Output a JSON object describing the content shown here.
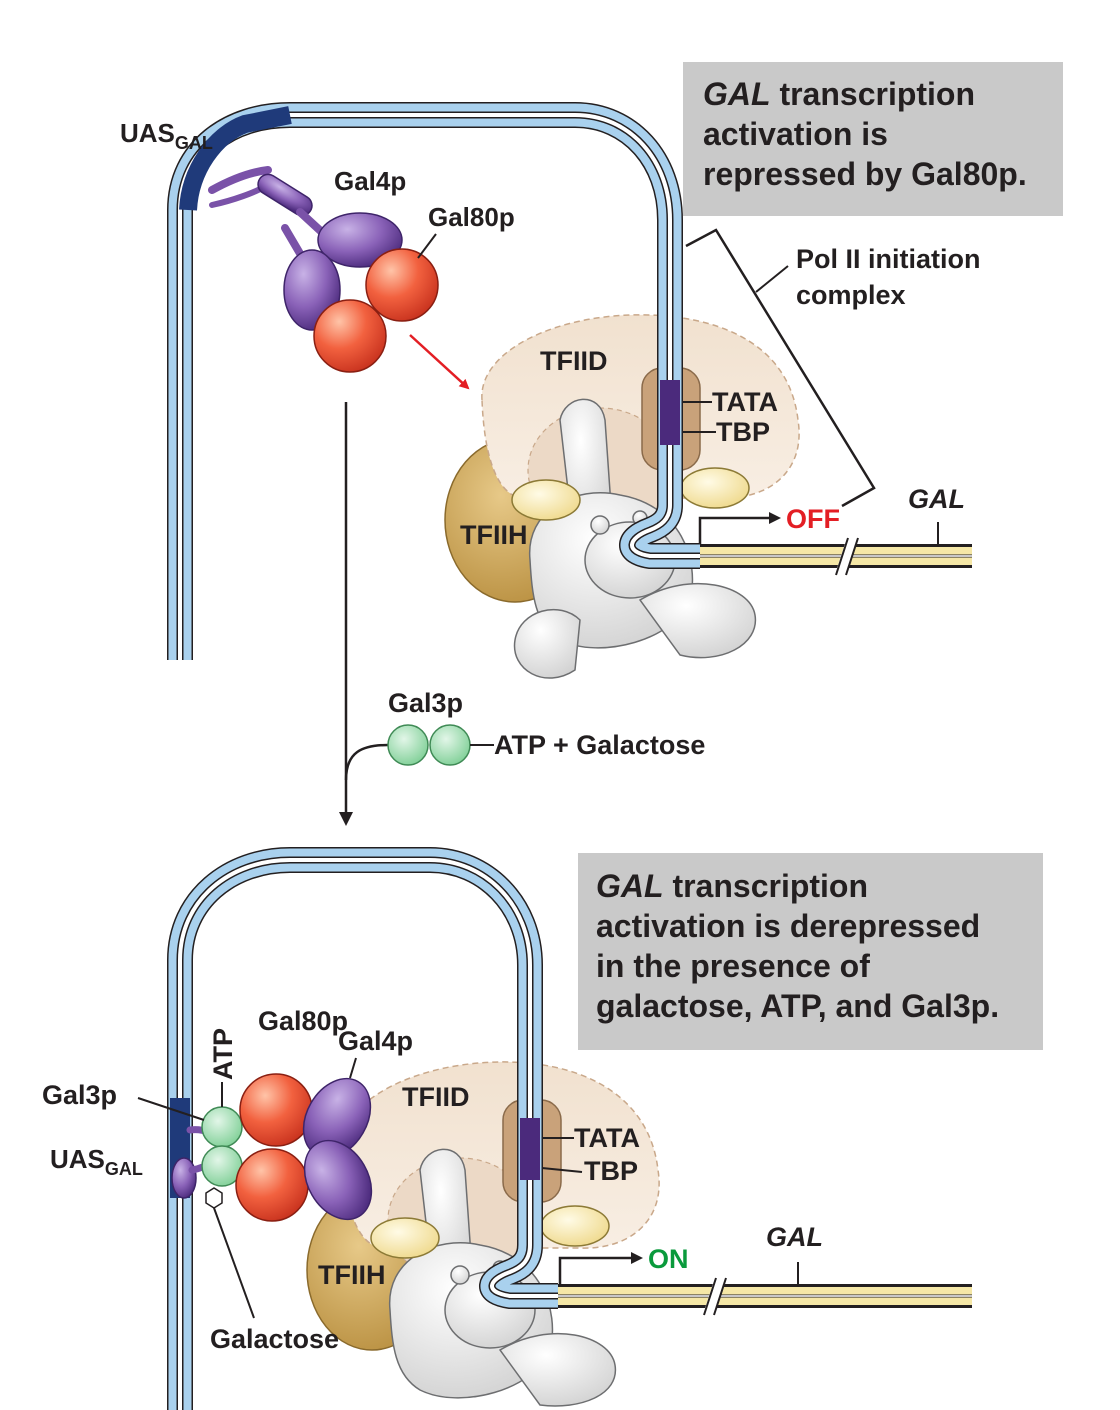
{
  "top_panel": {
    "note_gene": "GAL",
    "note_line1_rest": " transcription",
    "note_line2": "activation is",
    "note_line3": "repressed by Gal80p.",
    "uas": "UAS",
    "uas_sub": "GAL",
    "gal4p": "Gal4p",
    "gal80p": "Gal80p",
    "pol2_line1": "Pol II initiation",
    "pol2_line2": "complex",
    "tfiid": "TFIID",
    "tata": "TATA",
    "tbp": "TBP",
    "tfiih": "TFIIH",
    "gal_gene": "GAL",
    "state": "OFF"
  },
  "transition": {
    "gal3p": "Gal3p",
    "reagents": "ATP + Galactose"
  },
  "bottom_panel": {
    "note_gene": "GAL",
    "note_line1_rest": " transcription",
    "note_line2": "activation is derepressed",
    "note_line3": "in the presence of",
    "note_line4": "galactose, ATP, and Gal3p.",
    "gal80p": "Gal80p",
    "gal4p": "Gal4p",
    "atp": "ATP",
    "gal3p": "Gal3p",
    "uas": "UAS",
    "uas_sub": "GAL",
    "galactose": "Galactose",
    "tfiid": "TFIID",
    "tata": "TATA",
    "tbp": "TBP",
    "tfiih": "TFIIH",
    "gal_gene": "GAL",
    "state": "ON"
  },
  "colors": {
    "dna_blue": "#a9d1ee",
    "uas_navy": "#1f3a7a",
    "gal4_purple": "#7a52a8",
    "gal80_red": "#f0553c",
    "gal3_green": "#8fd6a4",
    "tfiid_beige": "#f3e3d2",
    "tfiih_gold": "#cfa75a",
    "yellow_factor": "#f5e7a6",
    "pol2_gray": "#e6e6e6",
    "off_red": "#e31e24",
    "on_green": "#0a9a3c",
    "note_gray": "#c9c9c9"
  }
}
